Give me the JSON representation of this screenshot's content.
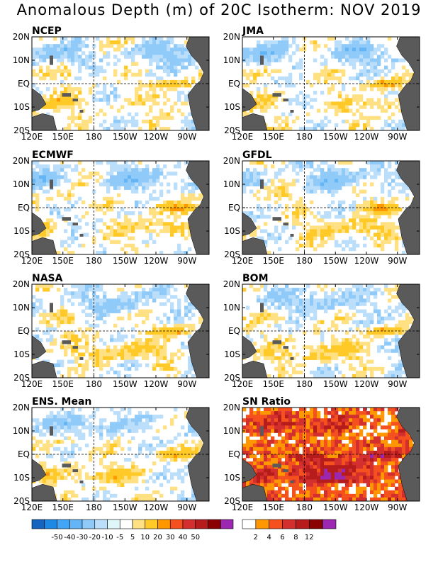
{
  "title": "Anomalous Depth (m) of 20C Isotherm: NOV 2019",
  "lon_labels": [
    "120E",
    "150E",
    "180",
    "150W",
    "120W",
    "90W"
  ],
  "lat_labels": [
    "20N",
    "10N",
    "EQ",
    "10S",
    "20S"
  ],
  "panels": [
    {
      "name": "NCEP",
      "kind": "anomaly"
    },
    {
      "name": "JMA",
      "kind": "anomaly"
    },
    {
      "name": "ECMWF",
      "kind": "anomaly"
    },
    {
      "name": "GFDL",
      "kind": "anomaly"
    },
    {
      "name": "NASA",
      "kind": "anomaly"
    },
    {
      "name": "BOM",
      "kind": "anomaly"
    },
    {
      "name": "ENS. Mean",
      "kind": "anomaly"
    },
    {
      "name": "SN Ratio",
      "kind": "snr"
    }
  ],
  "anomaly_colorbar": {
    "colors": [
      "#1565c0",
      "#1e88e5",
      "#42a5f5",
      "#64b5f6",
      "#90caf9",
      "#bbdefb",
      "#e0f7fa",
      "#ffffff",
      "#ffe082",
      "#ffca28",
      "#ff9800",
      "#f4511e",
      "#d32f2f",
      "#b71c1c",
      "#8b0000",
      "#9c27b0"
    ],
    "labels": [
      "-50",
      "-40",
      "-30",
      "-20",
      "-10",
      "-5",
      "5",
      "10",
      "20",
      "30",
      "40",
      "50"
    ]
  },
  "snr_colorbar": {
    "colors": [
      "#ffffff",
      "#ff9800",
      "#f4511e",
      "#d32f2f",
      "#b71c1c",
      "#8b0000",
      "#9c27b0"
    ],
    "labels": [
      "2",
      "4",
      "6",
      "8",
      "12"
    ]
  },
  "colors": {
    "land": "#5a5a5a",
    "frame": "#000000"
  }
}
